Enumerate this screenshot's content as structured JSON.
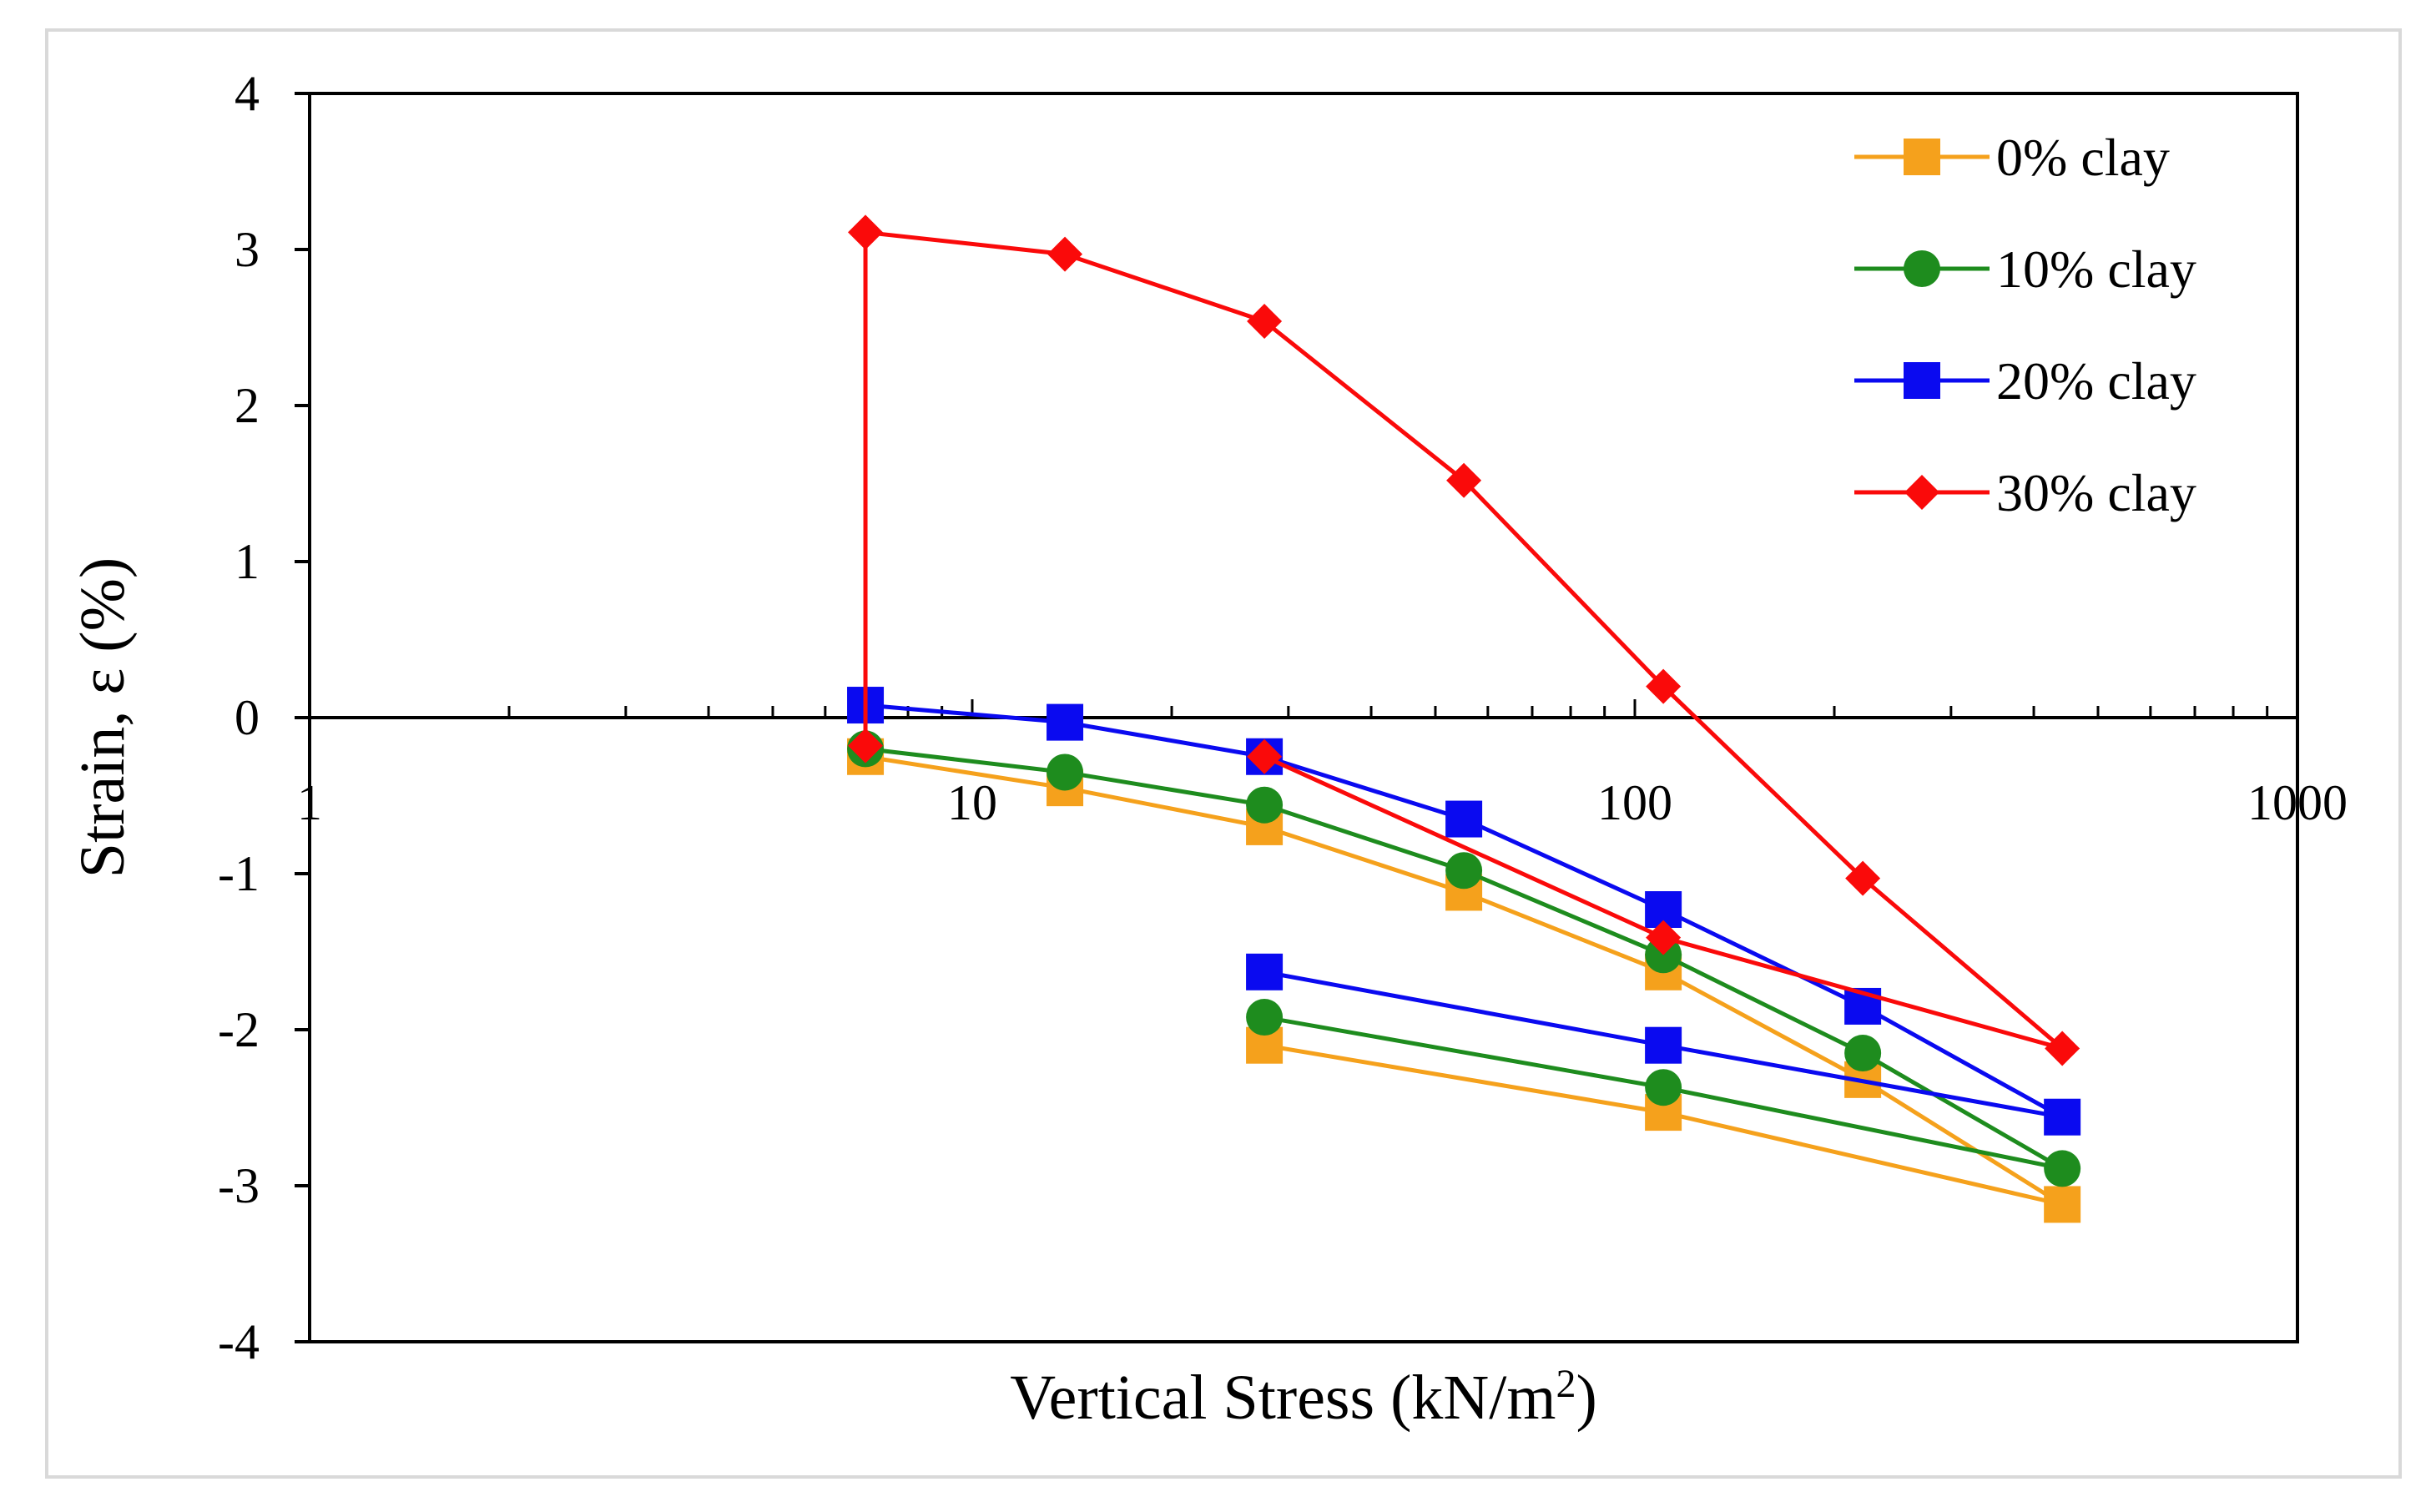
{
  "chart_data": {
    "type": "line",
    "xlabel": "Vertical Stress (kN/m",
    "xlabel_sup": "2",
    "xlabel_end": ")",
    "ylabel": "Strain, ε (%)",
    "x_scale": "log",
    "xlim": [
      1,
      1000
    ],
    "ylim": [
      -4,
      4
    ],
    "x_ticks": [
      {
        "value": 1,
        "label": "1"
      },
      {
        "value": 10,
        "label": "10"
      },
      {
        "value": 100,
        "label": "100"
      },
      {
        "value": 1000,
        "label": "1000"
      }
    ],
    "y_ticks": [
      {
        "value": 4,
        "label": "4"
      },
      {
        "value": 3,
        "label": "3"
      },
      {
        "value": 2,
        "label": "2"
      },
      {
        "value": 1,
        "label": "1"
      },
      {
        "value": 0,
        "label": "0"
      },
      {
        "value": -1,
        "label": "-1"
      },
      {
        "value": -2,
        "label": "-2"
      },
      {
        "value": -3,
        "label": "-3"
      },
      {
        "value": -4,
        "label": "-4"
      }
    ],
    "grid": false,
    "legend_position": "top-right",
    "series": [
      {
        "name": "0% clay",
        "color": "#F5A11C",
        "marker": "square",
        "points": [
          [
            6.9,
            -0.25
          ],
          [
            13.8,
            -0.45
          ],
          [
            27.6,
            -0.7
          ],
          [
            55.2,
            -1.12
          ],
          [
            110.4,
            -1.63
          ],
          [
            220.8,
            -2.32
          ],
          [
            441.6,
            -3.12
          ],
          [
            110.4,
            -2.53
          ],
          [
            27.6,
            -2.1
          ]
        ]
      },
      {
        "name": "10% clay",
        "color": "#1E8C1E",
        "marker": "circle",
        "points": [
          [
            6.9,
            -0.2
          ],
          [
            13.8,
            -0.35
          ],
          [
            27.6,
            -0.56
          ],
          [
            55.2,
            -0.98
          ],
          [
            110.4,
            -1.52
          ],
          [
            220.8,
            -2.15
          ],
          [
            441.6,
            -2.89
          ],
          [
            110.4,
            -2.37
          ],
          [
            27.6,
            -1.92
          ]
        ]
      },
      {
        "name": "20% clay",
        "color": "#0A0AF0",
        "marker": "square",
        "points": [
          [
            6.9,
            0.08
          ],
          [
            13.8,
            -0.03
          ],
          [
            27.6,
            -0.25
          ],
          [
            55.2,
            -0.65
          ],
          [
            110.4,
            -1.23
          ],
          [
            220.8,
            -1.85
          ],
          [
            441.6,
            -2.56
          ],
          [
            110.4,
            -2.1
          ],
          [
            27.6,
            -1.63
          ]
        ]
      },
      {
        "name": "30% clay",
        "color": "#FA0A0A",
        "marker": "diamond",
        "points": [
          [
            6.9,
            -0.18
          ],
          [
            6.9,
            3.11
          ],
          [
            13.8,
            2.97
          ],
          [
            27.6,
            2.54
          ],
          [
            55.2,
            1.52
          ],
          [
            110.4,
            0.2
          ],
          [
            220.8,
            -1.03
          ],
          [
            441.6,
            -2.12
          ],
          [
            110.4,
            -1.41
          ],
          [
            27.6,
            -0.25
          ]
        ]
      }
    ]
  }
}
